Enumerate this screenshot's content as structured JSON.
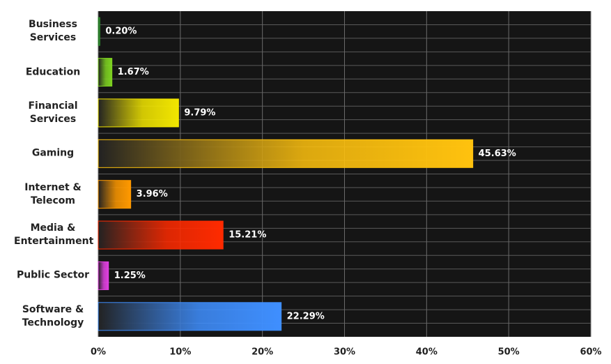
{
  "chart_data": {
    "type": "bar",
    "orientation": "horizontal",
    "categories": [
      "Business Services",
      "Education",
      "Financial Services",
      "Gaming",
      "Internet & Telecom",
      "Media & Entertainment",
      "Public Sector",
      "Software & Technology"
    ],
    "values": [
      0.2,
      1.67,
      9.79,
      45.63,
      3.96,
      15.21,
      1.25,
      22.29
    ],
    "value_labels": [
      "0.20%",
      "1.67%",
      "9.79%",
      "45.63%",
      "3.96%",
      "15.21%",
      "1.25%",
      "22.29%"
    ],
    "colors": [
      "#2e8b2e",
      "#7ed321",
      "#f2e600",
      "#ffc20e",
      "#ff9900",
      "#ff2a00",
      "#e040e0",
      "#3f8fff"
    ],
    "xlim": [
      0,
      60
    ],
    "xticks": [
      {
        "value": 0,
        "label": "0%"
      },
      {
        "value": 10,
        "label": "10%"
      },
      {
        "value": 20,
        "label": "20%"
      },
      {
        "value": 30,
        "label": "30%"
      },
      {
        "value": 40,
        "label": "40%"
      },
      {
        "value": 50,
        "label": "50%"
      },
      {
        "value": 60,
        "label": "60%"
      }
    ],
    "grid": true
  }
}
